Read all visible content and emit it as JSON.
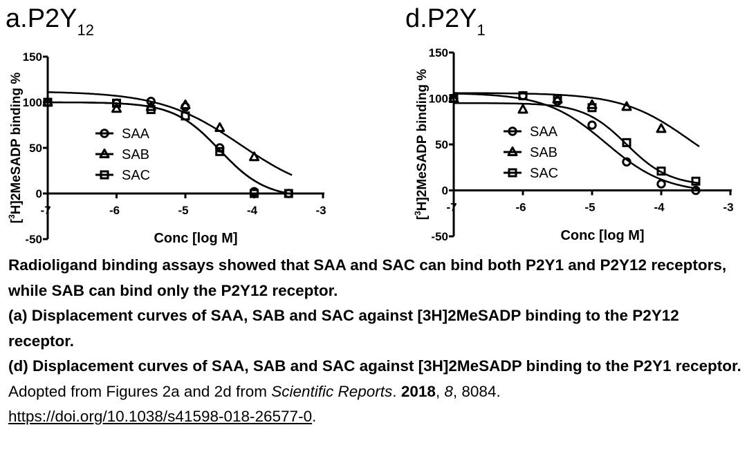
{
  "chart_data": [
    {
      "type": "scatter",
      "panel_label": "a.P2Y",
      "panel_sub": "12",
      "xlabel": "Conc [log M]",
      "ylabel": "[3H]2MeSADP binding %",
      "ylabel_pre": "[",
      "ylabel_sup": "3",
      "ylabel_post": "H]2MeSADP binding %",
      "xlim": [
        -7,
        -3
      ],
      "ylim": [
        -50,
        150
      ],
      "xticks": [
        -7,
        -6,
        -5,
        -4,
        -3
      ],
      "yticks": [
        -50,
        0,
        50,
        100,
        150
      ],
      "legend_position": "center-left",
      "series": [
        {
          "name": "SAA",
          "marker": "circle",
          "x": [
            -7,
            -6,
            -5.5,
            -5,
            -4.5,
            -4,
            -3.5
          ],
          "y": [
            100,
            99,
            101,
            95,
            50,
            2,
            0
          ],
          "curve": {
            "top": 100,
            "bottom": -5,
            "logEC50": -4.5,
            "hill": 1.3
          }
        },
        {
          "name": "SAB",
          "marker": "triangle",
          "x": [
            -7,
            -6,
            -5.5,
            -5,
            -4.5,
            -4
          ],
          "y": [
            100,
            93,
            95,
            97,
            72,
            40
          ],
          "curve": {
            "top": 112,
            "bottom": -5,
            "logEC50": -4.2,
            "hill": 0.75
          }
        },
        {
          "name": "SAC",
          "marker": "square",
          "x": [
            -7,
            -6,
            -5.5,
            -5,
            -4.5,
            -4,
            -3.5
          ],
          "y": [
            100,
            99,
            92,
            85,
            46,
            0,
            0
          ],
          "curve": {
            "top": 100,
            "bottom": -5,
            "logEC50": -4.5,
            "hill": 1.3
          }
        }
      ]
    },
    {
      "type": "scatter",
      "panel_label": "d.P2Y",
      "panel_sub": "1",
      "xlabel": "Conc [log M]",
      "ylabel": "[3H]2MeSADP binding %",
      "ylabel_pre": "[",
      "ylabel_sup": "3",
      "ylabel_post": "H]2MeSADP binding %",
      "xlim": [
        -7,
        -3
      ],
      "ylim": [
        -50,
        150
      ],
      "xticks": [
        -7,
        -6,
        -5,
        -4,
        -3
      ],
      "yticks": [
        -50,
        0,
        50,
        100,
        150
      ],
      "legend_position": "center-left",
      "series": [
        {
          "name": "SAA",
          "marker": "circle",
          "x": [
            -7,
            -6,
            -5.5,
            -5,
            -4.5,
            -4,
            -3.5
          ],
          "y": [
            100,
            103,
            97,
            71,
            31,
            7,
            0
          ],
          "curve": {
            "top": 106,
            "bottom": -3,
            "logEC50": -4.8,
            "hill": 1.0
          }
        },
        {
          "name": "SAB",
          "marker": "triangle",
          "x": [
            -7,
            -6,
            -5.5,
            -5,
            -4.5,
            -4
          ],
          "y": [
            100,
            88,
            99,
            93,
            91,
            67
          ],
          "curve": {
            "top": 106,
            "bottom": 5,
            "logEC50": -3.6,
            "hill": 0.9
          }
        },
        {
          "name": "SAC",
          "marker": "square",
          "x": [
            -7,
            -6,
            -5.5,
            -5,
            -4.5,
            -4,
            -3.5
          ],
          "y": [
            100,
            103,
            100,
            90,
            52,
            21,
            10
          ],
          "curve": {
            "top": 95,
            "bottom": 5,
            "logEC50": -4.5,
            "hill": 1.4
          }
        }
      ]
    }
  ],
  "caption": {
    "line1": "Radioligand binding assays showed that SAA and SAC can bind both P2Y1 and P2Y12 receptors, while SAB can bind only the P2Y12 receptor.",
    "line2": "(a) Displacement curves of SAA, SAB and SAC against [3H]2MeSADP binding to the P2Y12 receptor.",
    "line3": "(d) Displacement curves of SAA, SAB and SAC against [3H]2MeSADP binding to the P2Y1 receptor.",
    "source_prefix": "Adopted from Figures 2a and 2d from ",
    "journal": "Scientific Reports",
    "sep1": ". ",
    "year": "2018",
    "sep2": ", ",
    "volume": "8",
    "sep3": ", 8084.",
    "doi": "https://doi.org/10.1038/s41598-018-26577-0",
    "doi_suffix": "."
  }
}
